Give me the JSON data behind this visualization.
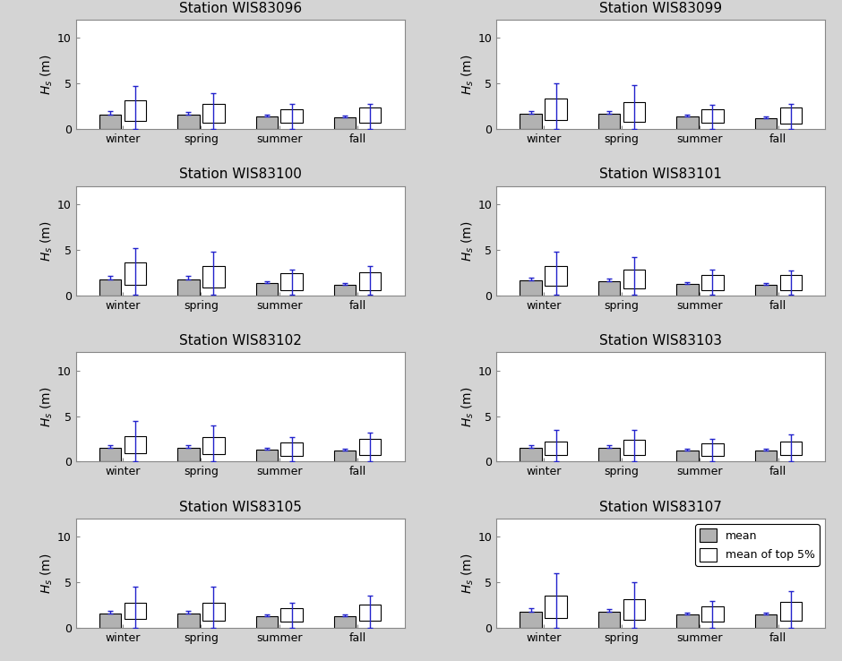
{
  "stations": [
    "WIS83096",
    "WIS83099",
    "WIS83100",
    "WIS83101",
    "WIS83102",
    "WIS83103",
    "WIS83105",
    "WIS83107"
  ],
  "seasons": [
    "winter",
    "spring",
    "summer",
    "fall"
  ],
  "gray_mean": {
    "WIS83096": [
      1.6,
      1.6,
      1.4,
      1.3
    ],
    "WIS83099": [
      1.7,
      1.7,
      1.4,
      1.2
    ],
    "WIS83100": [
      1.8,
      1.8,
      1.4,
      1.2
    ],
    "WIS83101": [
      1.7,
      1.6,
      1.3,
      1.2
    ],
    "WIS83102": [
      1.5,
      1.5,
      1.3,
      1.2
    ],
    "WIS83103": [
      1.5,
      1.5,
      1.2,
      1.2
    ],
    "WIS83105": [
      1.6,
      1.6,
      1.3,
      1.3
    ],
    "WIS83107": [
      1.8,
      1.8,
      1.5,
      1.5
    ]
  },
  "gray_err_top": {
    "WIS83096": [
      0.35,
      0.3,
      0.2,
      0.2
    ],
    "WIS83099": [
      0.3,
      0.3,
      0.2,
      0.2
    ],
    "WIS83100": [
      0.35,
      0.3,
      0.2,
      0.2
    ],
    "WIS83101": [
      0.3,
      0.3,
      0.2,
      0.2
    ],
    "WIS83102": [
      0.3,
      0.3,
      0.2,
      0.2
    ],
    "WIS83103": [
      0.3,
      0.3,
      0.2,
      0.2
    ],
    "WIS83105": [
      0.3,
      0.3,
      0.2,
      0.2
    ],
    "WIS83107": [
      0.35,
      0.3,
      0.2,
      0.2
    ]
  },
  "white_bottom": {
    "WIS83096": [
      0.9,
      0.7,
      0.7,
      0.7
    ],
    "WIS83099": [
      1.0,
      0.8,
      0.7,
      0.6
    ],
    "WIS83100": [
      1.2,
      0.9,
      0.6,
      0.6
    ],
    "WIS83101": [
      1.1,
      0.8,
      0.6,
      0.6
    ],
    "WIS83102": [
      0.9,
      0.8,
      0.6,
      0.7
    ],
    "WIS83103": [
      0.7,
      0.7,
      0.6,
      0.7
    ],
    "WIS83105": [
      1.0,
      0.8,
      0.7,
      0.8
    ],
    "WIS83107": [
      1.1,
      0.9,
      0.7,
      0.8
    ]
  },
  "white_top": {
    "WIS83096": [
      3.2,
      2.8,
      2.2,
      2.4
    ],
    "WIS83099": [
      3.4,
      3.0,
      2.2,
      2.4
    ],
    "WIS83100": [
      3.6,
      3.2,
      2.4,
      2.5
    ],
    "WIS83101": [
      3.2,
      2.8,
      2.2,
      2.2
    ],
    "WIS83102": [
      2.8,
      2.7,
      2.1,
      2.5
    ],
    "WIS83103": [
      2.2,
      2.4,
      2.0,
      2.2
    ],
    "WIS83105": [
      2.8,
      2.8,
      2.2,
      2.6
    ],
    "WIS83107": [
      3.5,
      3.2,
      2.4,
      2.9
    ]
  },
  "error_top": {
    "WIS83096": [
      4.7,
      4.0,
      2.8,
      2.8
    ],
    "WIS83099": [
      5.0,
      4.8,
      2.7,
      2.8
    ],
    "WIS83100": [
      5.2,
      4.8,
      2.8,
      3.2
    ],
    "WIS83101": [
      4.8,
      4.2,
      2.8,
      2.7
    ],
    "WIS83102": [
      4.5,
      4.0,
      2.7,
      3.2
    ],
    "WIS83103": [
      3.5,
      3.5,
      2.5,
      3.0
    ],
    "WIS83105": [
      4.5,
      4.5,
      2.8,
      3.5
    ],
    "WIS83107": [
      6.0,
      5.0,
      3.0,
      4.0
    ]
  },
  "error_bottom": {
    "WIS83096": [
      0.05,
      0.05,
      0.05,
      0.05
    ],
    "WIS83099": [
      0.05,
      0.05,
      0.05,
      0.05
    ],
    "WIS83100": [
      0.05,
      0.05,
      0.05,
      0.05
    ],
    "WIS83101": [
      0.05,
      0.05,
      0.05,
      0.05
    ],
    "WIS83102": [
      0.05,
      0.05,
      0.05,
      0.05
    ],
    "WIS83103": [
      0.05,
      0.05,
      0.05,
      0.05
    ],
    "WIS83105": [
      0.05,
      0.05,
      0.05,
      0.05
    ],
    "WIS83107": [
      0.05,
      0.05,
      0.05,
      0.05
    ]
  },
  "ylim": [
    0,
    12
  ],
  "yticks": [
    0,
    5,
    10
  ],
  "bar_width": 0.28,
  "gray_color": "#b2b2b2",
  "white_color": "#ffffff",
  "edge_color": "#000000",
  "error_color": "#2222cc",
  "fig_facecolor": "#d4d4d4",
  "ax_facecolor": "#ffffff",
  "title_fontsize": 11,
  "tick_fontsize": 9,
  "ylabel_fontsize": 10,
  "legend_station": "WIS83107"
}
